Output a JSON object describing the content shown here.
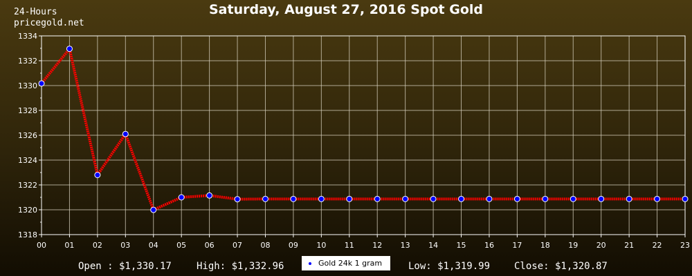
{
  "header": {
    "title": "Saturday, August 27, 2016 Spot Gold",
    "brand_line1": "24-Hours",
    "brand_line2": "pricegold.net"
  },
  "footer": {
    "open": "Open : $1,330.17",
    "high": "High: $1,332.96",
    "low": "Low: $1,319.99",
    "close": "Close: $1,320.87"
  },
  "colors": {
    "line": "#ff0000",
    "marker": "#0000ff",
    "grid": "#d8d2c0",
    "axis": "#ffffff",
    "legend_bg": "#ffffff"
  },
  "chart_data": {
    "type": "line",
    "title": "Saturday, August 27, 2016 Spot Gold",
    "xlabel": "",
    "ylabel": "",
    "x": [
      "00",
      "01",
      "02",
      "03",
      "04",
      "05",
      "06",
      "07",
      "08",
      "09",
      "10",
      "11",
      "12",
      "13",
      "14",
      "15",
      "16",
      "17",
      "18",
      "19",
      "20",
      "21",
      "22",
      "23"
    ],
    "ylim": [
      1318,
      1334
    ],
    "yticks": [
      1318,
      1320,
      1322,
      1324,
      1326,
      1328,
      1330,
      1332,
      1334
    ],
    "grid": true,
    "legend_position": "bottom-center",
    "series": [
      {
        "name": "Gold 24k 1 gram",
        "values": [
          1330.17,
          1332.96,
          1322.8,
          1326.1,
          1319.99,
          1321.0,
          1321.15,
          1320.85,
          1320.87,
          1320.87,
          1320.87,
          1320.87,
          1320.87,
          1320.87,
          1320.87,
          1320.87,
          1320.87,
          1320.87,
          1320.87,
          1320.87,
          1320.87,
          1320.87,
          1320.87,
          1320.87
        ]
      }
    ]
  }
}
